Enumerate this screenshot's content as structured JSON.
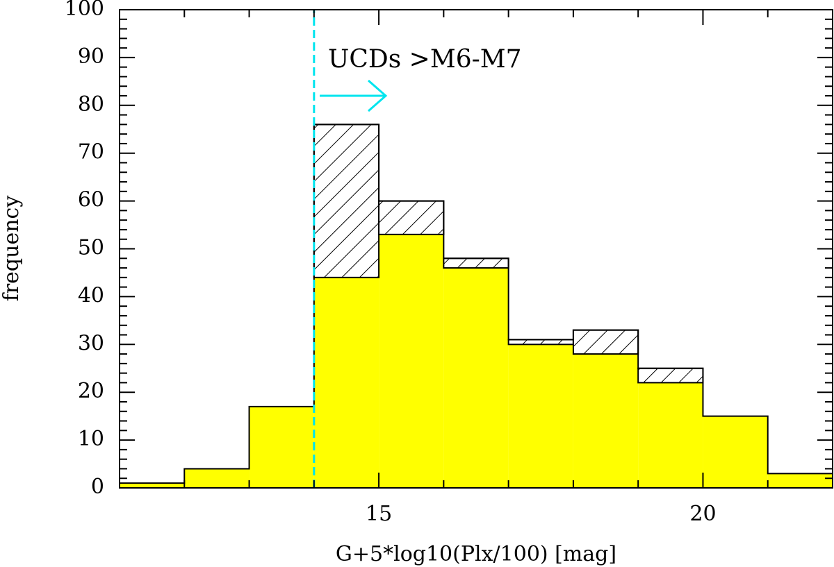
{
  "chart_data": {
    "type": "histogram",
    "xlabel": "G+5*log10(Plx/100) [mag]",
    "ylabel": "frequency",
    "bins": [
      11,
      12,
      13,
      14,
      15,
      16,
      17,
      18,
      19,
      20,
      21,
      22
    ],
    "stacked": true,
    "series": [
      {
        "color": "#ffff00",
        "hatch": false,
        "values": [
          1,
          4,
          17,
          44,
          53,
          46,
          30,
          28,
          22,
          15,
          3
        ]
      },
      {
        "color": "#000000",
        "hatch": true,
        "values": [
          0,
          0,
          0,
          32,
          7,
          2,
          1,
          5,
          3,
          0,
          0
        ]
      }
    ],
    "xlim": [
      11,
      22
    ],
    "xticks": [
      15,
      20
    ],
    "xminorticks": [
      11,
      12,
      13,
      14,
      16,
      17,
      18,
      19,
      21,
      22
    ],
    "ylim": [
      0,
      100
    ],
    "yticks": [
      0,
      10,
      20,
      30,
      40,
      50,
      60,
      70,
      80,
      90,
      100
    ],
    "yminorticks": [
      2,
      4,
      6,
      8,
      12,
      14,
      16,
      18,
      22,
      24,
      26,
      28,
      32,
      34,
      36,
      38,
      42,
      44,
      46,
      48,
      52,
      54,
      56,
      58,
      62,
      64,
      66,
      68,
      72,
      74,
      76,
      78,
      82,
      84,
      86,
      88,
      92,
      94,
      96,
      98
    ],
    "vline": {
      "x": 14,
      "color": "#00e5ee",
      "dashed": true
    },
    "annotation": {
      "text": "UCDs >M6-M7",
      "color": "#00e5ee"
    }
  }
}
